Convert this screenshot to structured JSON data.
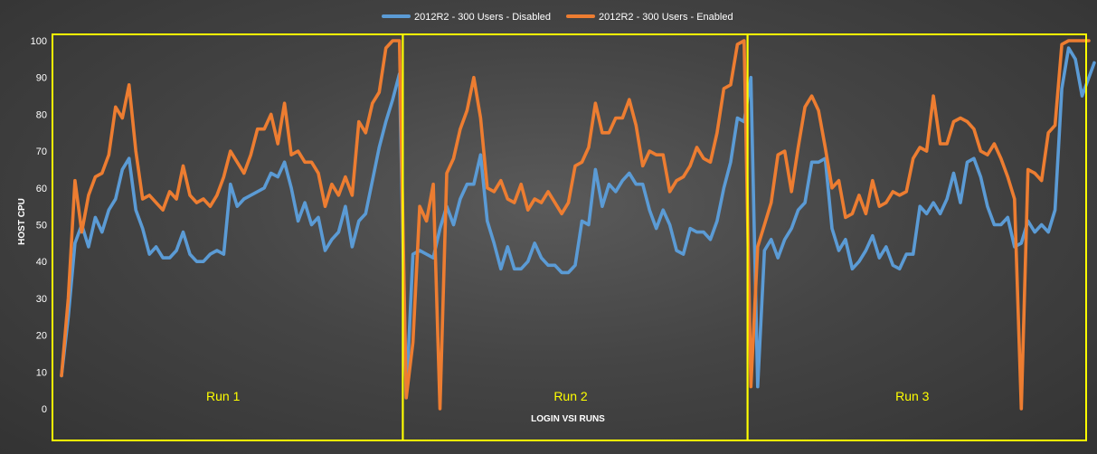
{
  "chart_data": {
    "type": "line",
    "ylabel": "HOST CPU",
    "xlabel": "LOGIN VSI RUNS",
    "ylim": [
      0,
      100
    ],
    "yticks": [
      0,
      10,
      20,
      30,
      40,
      50,
      60,
      70,
      80,
      90,
      100
    ],
    "grid": false,
    "legend_position": "top-center",
    "colors": {
      "disabled": "#5b9bd5",
      "enabled": "#ed7d31",
      "run_box": "#ffff00",
      "text": "#ffffff"
    },
    "series": [
      {
        "name": "2012R2 - 300 Users - Disabled",
        "color": "#5b9bd5",
        "values": [
          9,
          25,
          45,
          50,
          44,
          52,
          48,
          54,
          57,
          65,
          68,
          54,
          49,
          42,
          44,
          41,
          41,
          43,
          48,
          42,
          40,
          40,
          42,
          43,
          42,
          61,
          55,
          57,
          58,
          59,
          60,
          64,
          63,
          67,
          60,
          51,
          56,
          50,
          52,
          43,
          46,
          48,
          55,
          44,
          51,
          53,
          62,
          71,
          78,
          84,
          91,
          3,
          42,
          43,
          42,
          41,
          49,
          55,
          50,
          57,
          61,
          61,
          69,
          51,
          45,
          38,
          44,
          38,
          38,
          40,
          45,
          41,
          39,
          39,
          37,
          37,
          39,
          51,
          50,
          65,
          55,
          61,
          59,
          62,
          64,
          61,
          61,
          54,
          49,
          54,
          50,
          43,
          42,
          49,
          48,
          48,
          46,
          51,
          60,
          67,
          79,
          78,
          90,
          6,
          43,
          46,
          41,
          46,
          49,
          54,
          56,
          67,
          67,
          68,
          49,
          43,
          46,
          38,
          40,
          43,
          47,
          41,
          44,
          39,
          38,
          42,
          42,
          55,
          53,
          56,
          53,
          57,
          64,
          56,
          67,
          68,
          63,
          55,
          50,
          50,
          52,
          44,
          45,
          51,
          48,
          50,
          48,
          54,
          87,
          98,
          95,
          85,
          94
        ],
        "clip_last": true
      },
      {
        "name": "2012R2 - 300 Users - Enabled",
        "color": "#ed7d31",
        "values": [
          9,
          30,
          62,
          48,
          58,
          63,
          64,
          69,
          82,
          79,
          88,
          70,
          57,
          58,
          56,
          54,
          59,
          57,
          66,
          58,
          56,
          57,
          55,
          58,
          63,
          70,
          67,
          64,
          69,
          76,
          76,
          80,
          72,
          83,
          69,
          70,
          67,
          67,
          64,
          55,
          61,
          58,
          63,
          58,
          78,
          75,
          83,
          86,
          98,
          100,
          100,
          3,
          18,
          55,
          51,
          61,
          0,
          64,
          68,
          76,
          81,
          90,
          79,
          60,
          59,
          62,
          57,
          56,
          61,
          54,
          57,
          56,
          59,
          56,
          53,
          56,
          66,
          67,
          71,
          83,
          75,
          75,
          79,
          79,
          84,
          77,
          66,
          70,
          69,
          69,
          59,
          62,
          63,
          66,
          71,
          68,
          67,
          75,
          87,
          88,
          99,
          100,
          6,
          44,
          50,
          56,
          69,
          70,
          59,
          71,
          82,
          85,
          81,
          71,
          60,
          62,
          52,
          53,
          58,
          53,
          62,
          55,
          56,
          59,
          58,
          59,
          68,
          71,
          70,
          85,
          72,
          72,
          78,
          79,
          78,
          76,
          70,
          69,
          72,
          68,
          63,
          57,
          0,
          65,
          64,
          62,
          75,
          77,
          99,
          100,
          100,
          100,
          100
        ],
        "clip_last": false
      }
    ],
    "runs": [
      {
        "label": "Run 1",
        "start": 0,
        "end": 50
      },
      {
        "label": "Run 2",
        "start": 51,
        "end": 101
      },
      {
        "label": "Run 3",
        "start": 102,
        "end": 152
      }
    ]
  }
}
